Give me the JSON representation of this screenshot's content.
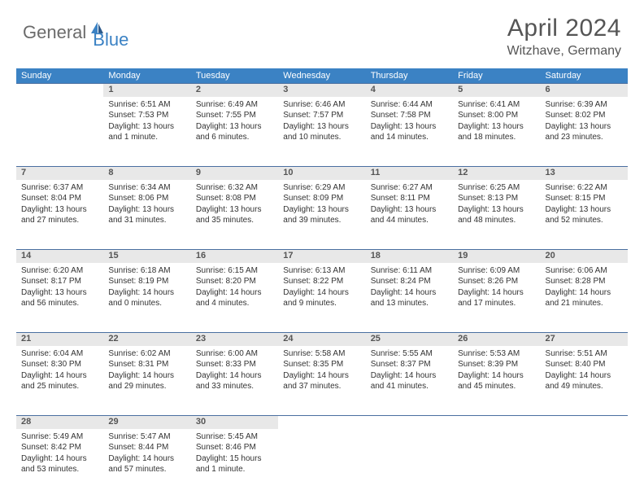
{
  "logo": {
    "textGeneral": "General",
    "textBlue": "Blue"
  },
  "title": "April 2024",
  "location": "Witzhave, Germany",
  "colors": {
    "headerBg": "#3b82c4",
    "headerText": "#ffffff",
    "dayNumBg": "#e8e8e8",
    "borderTop": "#4a6fa0",
    "bodyText": "#333333",
    "titleText": "#555555"
  },
  "dayHeaders": [
    "Sunday",
    "Monday",
    "Tuesday",
    "Wednesday",
    "Thursday",
    "Friday",
    "Saturday"
  ],
  "weeks": [
    [
      null,
      {
        "n": "1",
        "sr": "Sunrise: 6:51 AM",
        "ss": "Sunset: 7:53 PM",
        "d1": "Daylight: 13 hours",
        "d2": "and 1 minute."
      },
      {
        "n": "2",
        "sr": "Sunrise: 6:49 AM",
        "ss": "Sunset: 7:55 PM",
        "d1": "Daylight: 13 hours",
        "d2": "and 6 minutes."
      },
      {
        "n": "3",
        "sr": "Sunrise: 6:46 AM",
        "ss": "Sunset: 7:57 PM",
        "d1": "Daylight: 13 hours",
        "d2": "and 10 minutes."
      },
      {
        "n": "4",
        "sr": "Sunrise: 6:44 AM",
        "ss": "Sunset: 7:58 PM",
        "d1": "Daylight: 13 hours",
        "d2": "and 14 minutes."
      },
      {
        "n": "5",
        "sr": "Sunrise: 6:41 AM",
        "ss": "Sunset: 8:00 PM",
        "d1": "Daylight: 13 hours",
        "d2": "and 18 minutes."
      },
      {
        "n": "6",
        "sr": "Sunrise: 6:39 AM",
        "ss": "Sunset: 8:02 PM",
        "d1": "Daylight: 13 hours",
        "d2": "and 23 minutes."
      }
    ],
    [
      {
        "n": "7",
        "sr": "Sunrise: 6:37 AM",
        "ss": "Sunset: 8:04 PM",
        "d1": "Daylight: 13 hours",
        "d2": "and 27 minutes."
      },
      {
        "n": "8",
        "sr": "Sunrise: 6:34 AM",
        "ss": "Sunset: 8:06 PM",
        "d1": "Daylight: 13 hours",
        "d2": "and 31 minutes."
      },
      {
        "n": "9",
        "sr": "Sunrise: 6:32 AM",
        "ss": "Sunset: 8:08 PM",
        "d1": "Daylight: 13 hours",
        "d2": "and 35 minutes."
      },
      {
        "n": "10",
        "sr": "Sunrise: 6:29 AM",
        "ss": "Sunset: 8:09 PM",
        "d1": "Daylight: 13 hours",
        "d2": "and 39 minutes."
      },
      {
        "n": "11",
        "sr": "Sunrise: 6:27 AM",
        "ss": "Sunset: 8:11 PM",
        "d1": "Daylight: 13 hours",
        "d2": "and 44 minutes."
      },
      {
        "n": "12",
        "sr": "Sunrise: 6:25 AM",
        "ss": "Sunset: 8:13 PM",
        "d1": "Daylight: 13 hours",
        "d2": "and 48 minutes."
      },
      {
        "n": "13",
        "sr": "Sunrise: 6:22 AM",
        "ss": "Sunset: 8:15 PM",
        "d1": "Daylight: 13 hours",
        "d2": "and 52 minutes."
      }
    ],
    [
      {
        "n": "14",
        "sr": "Sunrise: 6:20 AM",
        "ss": "Sunset: 8:17 PM",
        "d1": "Daylight: 13 hours",
        "d2": "and 56 minutes."
      },
      {
        "n": "15",
        "sr": "Sunrise: 6:18 AM",
        "ss": "Sunset: 8:19 PM",
        "d1": "Daylight: 14 hours",
        "d2": "and 0 minutes."
      },
      {
        "n": "16",
        "sr": "Sunrise: 6:15 AM",
        "ss": "Sunset: 8:20 PM",
        "d1": "Daylight: 14 hours",
        "d2": "and 4 minutes."
      },
      {
        "n": "17",
        "sr": "Sunrise: 6:13 AM",
        "ss": "Sunset: 8:22 PM",
        "d1": "Daylight: 14 hours",
        "d2": "and 9 minutes."
      },
      {
        "n": "18",
        "sr": "Sunrise: 6:11 AM",
        "ss": "Sunset: 8:24 PM",
        "d1": "Daylight: 14 hours",
        "d2": "and 13 minutes."
      },
      {
        "n": "19",
        "sr": "Sunrise: 6:09 AM",
        "ss": "Sunset: 8:26 PM",
        "d1": "Daylight: 14 hours",
        "d2": "and 17 minutes."
      },
      {
        "n": "20",
        "sr": "Sunrise: 6:06 AM",
        "ss": "Sunset: 8:28 PM",
        "d1": "Daylight: 14 hours",
        "d2": "and 21 minutes."
      }
    ],
    [
      {
        "n": "21",
        "sr": "Sunrise: 6:04 AM",
        "ss": "Sunset: 8:30 PM",
        "d1": "Daylight: 14 hours",
        "d2": "and 25 minutes."
      },
      {
        "n": "22",
        "sr": "Sunrise: 6:02 AM",
        "ss": "Sunset: 8:31 PM",
        "d1": "Daylight: 14 hours",
        "d2": "and 29 minutes."
      },
      {
        "n": "23",
        "sr": "Sunrise: 6:00 AM",
        "ss": "Sunset: 8:33 PM",
        "d1": "Daylight: 14 hours",
        "d2": "and 33 minutes."
      },
      {
        "n": "24",
        "sr": "Sunrise: 5:58 AM",
        "ss": "Sunset: 8:35 PM",
        "d1": "Daylight: 14 hours",
        "d2": "and 37 minutes."
      },
      {
        "n": "25",
        "sr": "Sunrise: 5:55 AM",
        "ss": "Sunset: 8:37 PM",
        "d1": "Daylight: 14 hours",
        "d2": "and 41 minutes."
      },
      {
        "n": "26",
        "sr": "Sunrise: 5:53 AM",
        "ss": "Sunset: 8:39 PM",
        "d1": "Daylight: 14 hours",
        "d2": "and 45 minutes."
      },
      {
        "n": "27",
        "sr": "Sunrise: 5:51 AM",
        "ss": "Sunset: 8:40 PM",
        "d1": "Daylight: 14 hours",
        "d2": "and 49 minutes."
      }
    ],
    [
      {
        "n": "28",
        "sr": "Sunrise: 5:49 AM",
        "ss": "Sunset: 8:42 PM",
        "d1": "Daylight: 14 hours",
        "d2": "and 53 minutes."
      },
      {
        "n": "29",
        "sr": "Sunrise: 5:47 AM",
        "ss": "Sunset: 8:44 PM",
        "d1": "Daylight: 14 hours",
        "d2": "and 57 minutes."
      },
      {
        "n": "30",
        "sr": "Sunrise: 5:45 AM",
        "ss": "Sunset: 8:46 PM",
        "d1": "Daylight: 15 hours",
        "d2": "and 1 minute."
      },
      null,
      null,
      null,
      null
    ]
  ]
}
